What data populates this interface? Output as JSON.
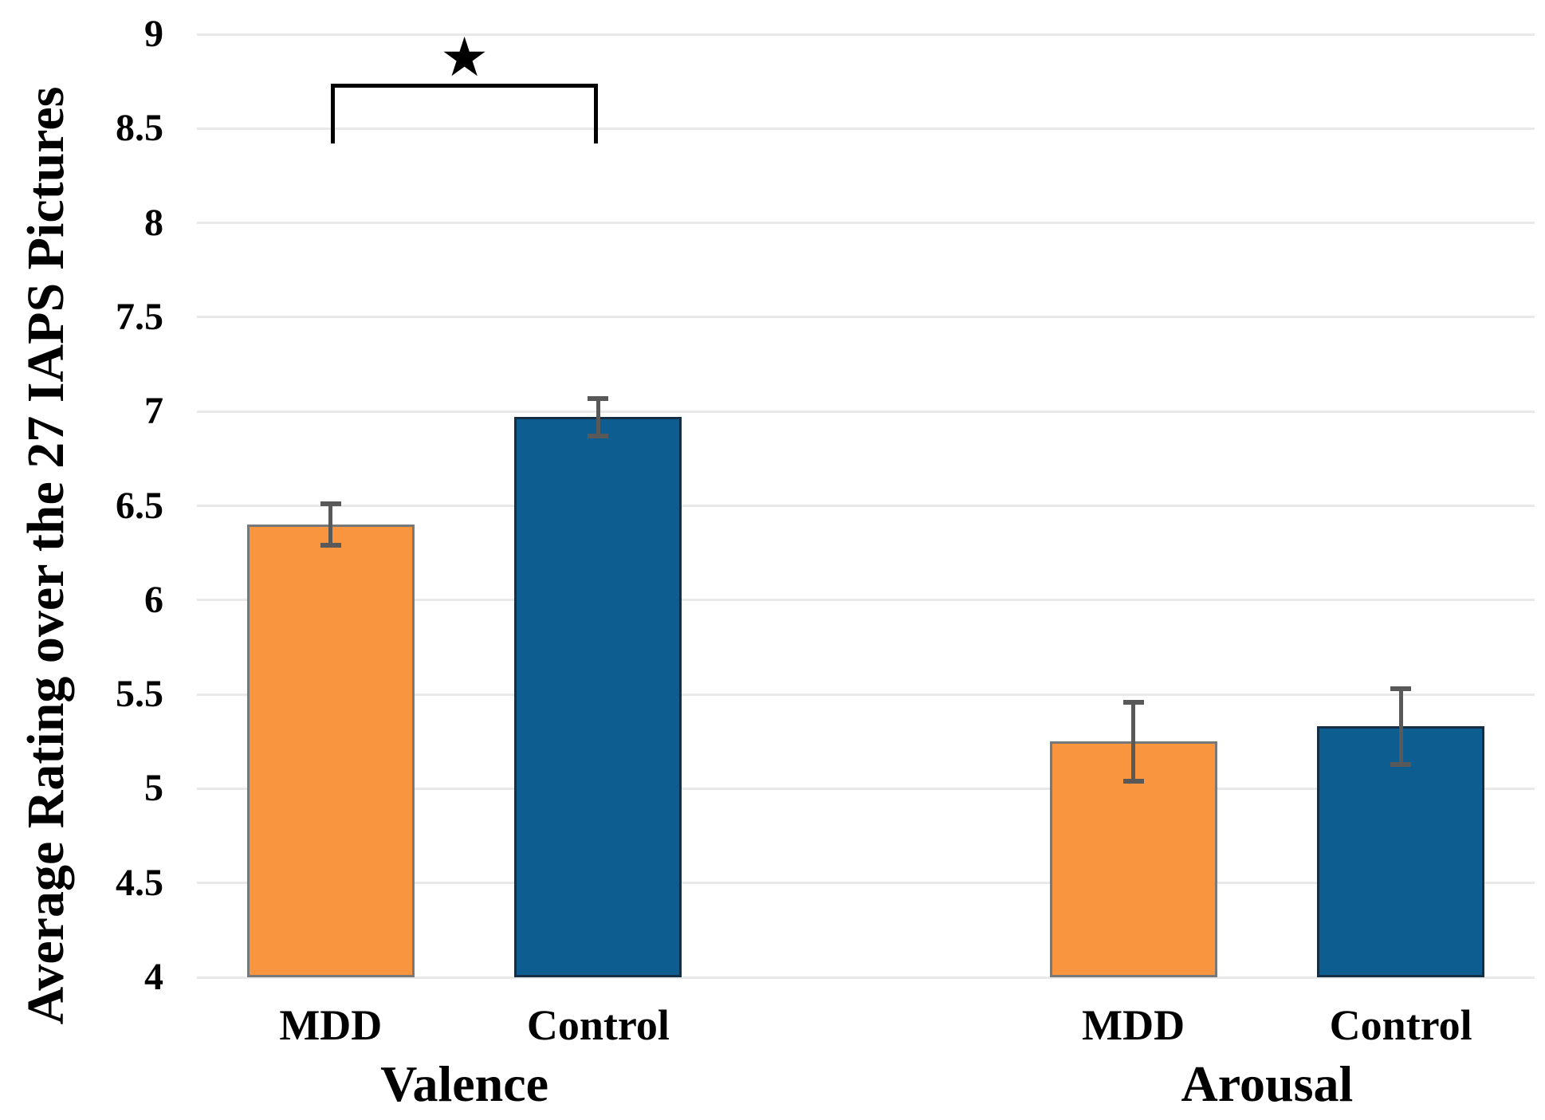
{
  "chart_data": {
    "type": "bar",
    "title": "",
    "xlabel": "",
    "ylabel": "Average Rating over the 27 IAPS Pictures",
    "ylim": [
      4,
      9
    ],
    "ytick_step": 0.5,
    "yticks": [
      "9",
      "8.5",
      "8",
      "7.5",
      "7",
      "6.5",
      "6",
      "5.5",
      "5",
      "4.5",
      "4"
    ],
    "grid": true,
    "legend": false,
    "groups": [
      {
        "label": "Valence",
        "bars": [
          {
            "label": "MDD",
            "value": 6.4,
            "error": 0.11
          },
          {
            "label": "Control",
            "value": 6.97,
            "error": 0.1
          }
        ]
      },
      {
        "label": "Arousal",
        "bars": [
          {
            "label": "MDD",
            "value": 5.25,
            "error": 0.21
          },
          {
            "label": "Control",
            "value": 5.33,
            "error": 0.2
          }
        ]
      }
    ],
    "colors": {
      "mdd_fill": "#F9953F",
      "mdd_stroke": "#77787a",
      "control_fill": "#0E5D90",
      "control_stroke": "#132e45",
      "gridline": "#e9e9e9",
      "error_bar": "#595959",
      "text": "#000000"
    },
    "significance": {
      "group": "Valence",
      "between": [
        "MDD",
        "Control"
      ],
      "label": "★",
      "bracket_top": 8.74,
      "bracket_ends": 8.42
    }
  }
}
